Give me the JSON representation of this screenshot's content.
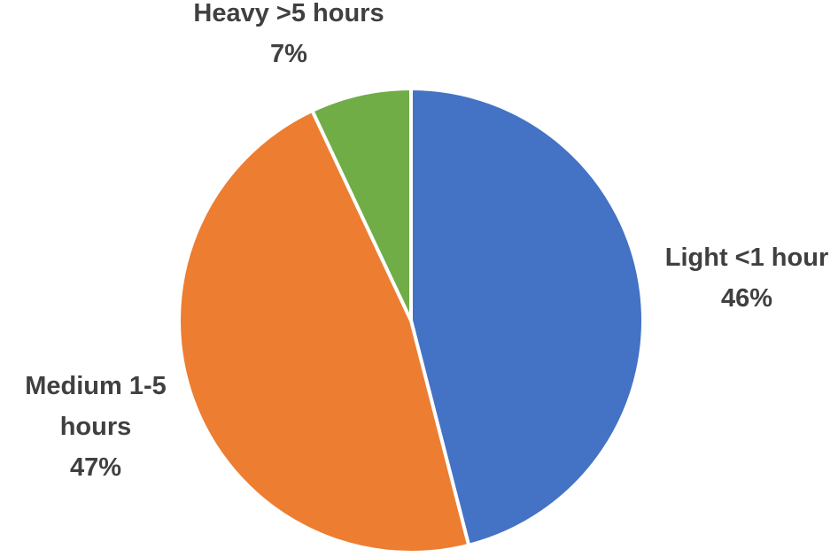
{
  "chart_data": {
    "type": "pie",
    "categories": [
      "Light <1 hour",
      "Medium 1-5 hours",
      "Heavy >5 hours"
    ],
    "values": [
      46,
      47,
      7
    ],
    "colors": [
      "#4472C4",
      "#ED7D31",
      "#70AD47"
    ],
    "start_angle_deg": 0,
    "direction": "clockwise",
    "labels": [
      {
        "lines": [
          "Light <1 hour"
        ],
        "value_text": "46%",
        "placement": "right"
      },
      {
        "lines": [
          "Medium 1-5",
          "hours"
        ],
        "value_text": "47%",
        "placement": "left"
      },
      {
        "lines": [
          "Heavy >5 hours"
        ],
        "value_text": "7%",
        "placement": "top"
      }
    ],
    "legend": "none",
    "title": ""
  }
}
